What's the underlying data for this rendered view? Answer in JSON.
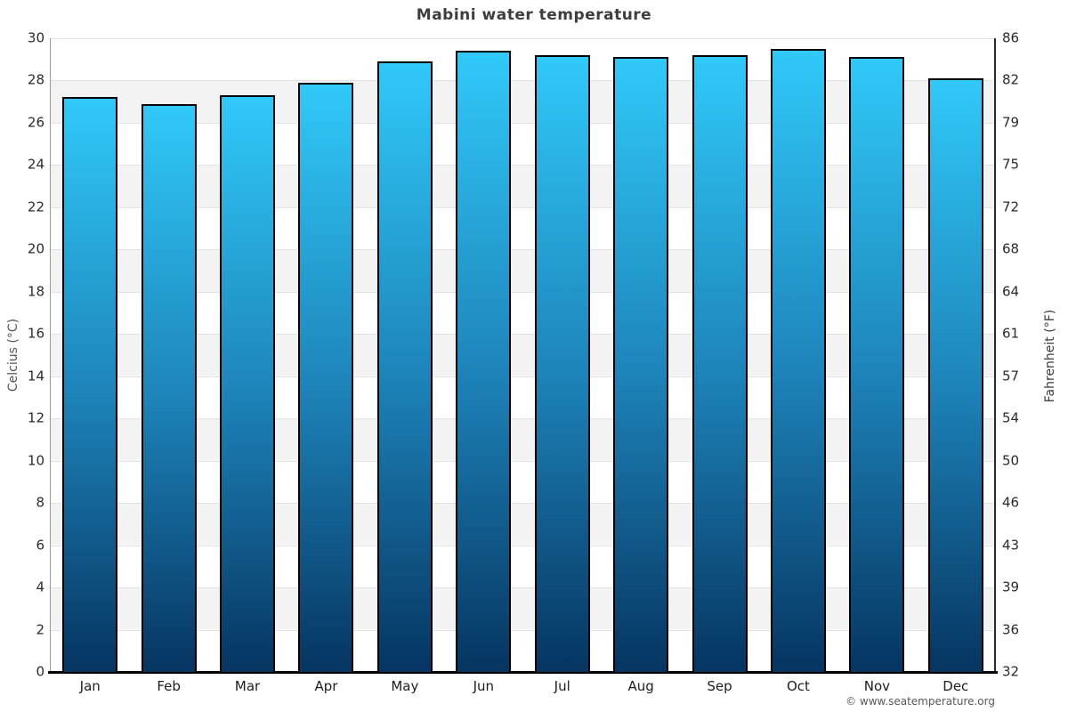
{
  "title": "Mabini water temperature",
  "watermark": "© www.seatemperature.org",
  "chart_data": {
    "type": "bar",
    "title": "Mabini water temperature",
    "categories": [
      "Jan",
      "Feb",
      "Mar",
      "Apr",
      "May",
      "Jun",
      "Jul",
      "Aug",
      "Sep",
      "Oct",
      "Nov",
      "Dec"
    ],
    "series": [
      {
        "name": "Water temperature (°C)",
        "values": [
          27.2,
          26.9,
          27.3,
          27.9,
          28.9,
          29.4,
          29.2,
          29.1,
          29.2,
          29.5,
          29.1,
          28.1
        ]
      }
    ],
    "ylabel_left": "Celcius (°C)",
    "ylabel_right": "Fahrenheit (°F)",
    "ylim_celsius": [
      0,
      30
    ],
    "celsius_ticks": [
      30,
      28,
      26,
      24,
      22,
      20,
      18,
      16,
      14,
      12,
      10,
      8,
      6,
      4,
      2,
      0
    ],
    "fahrenheit_ticks": [
      86,
      82,
      79,
      75,
      72,
      68,
      64,
      61,
      57,
      54,
      50,
      46,
      43,
      39,
      36,
      32
    ],
    "grid": "striped-horizontal-bands-every-2C",
    "legend": "none",
    "bar_color_top": "#30c9f8",
    "bar_color_mid": "#1e86bc",
    "bar_color_bottom": "#063561",
    "bar_border_color": "#000000"
  }
}
